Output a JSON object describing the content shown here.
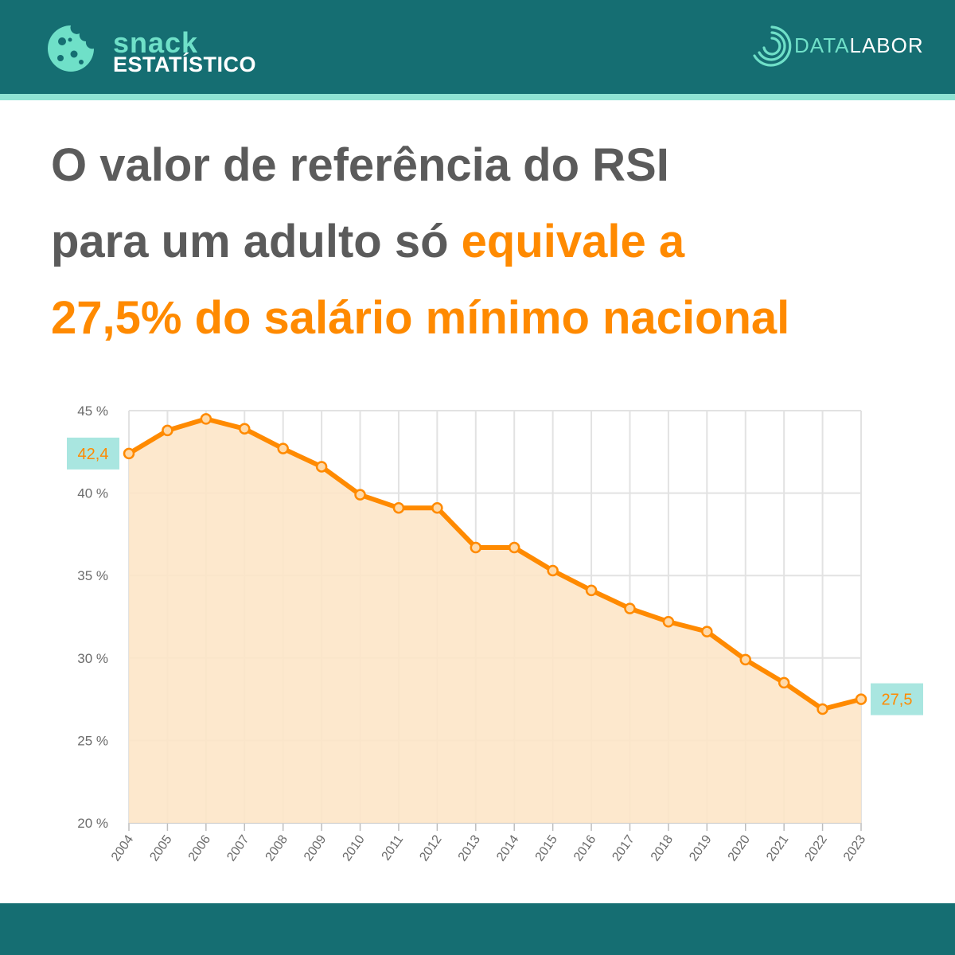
{
  "header": {
    "brand_top": "snack",
    "brand_bottom": "ESTATÍSTICO",
    "partner_part1": "DATA",
    "partner_part2": "LABOR",
    "brand_icon": "cookie-icon",
    "partner_icon": "concentric-arcs-icon"
  },
  "headline": {
    "line1": "O valor de referência do RSI",
    "line2_plain": "para um adulto só",
    "line2_highlight": "equivale a",
    "line3_highlight": "27,5% do salário mínimo nacional"
  },
  "colors": {
    "header_bg": "#156e72",
    "accent_teal": "#6fe0c8",
    "highlight_orange": "#ff8a00",
    "text_gray": "#5b5b5b",
    "area_fill": "#fde5c8",
    "callout_bg": "#a9e6e0"
  },
  "chart_data": {
    "type": "area",
    "title": "",
    "xlabel": "",
    "ylabel": "",
    "x": [
      "2004",
      "2005",
      "2006",
      "2007",
      "2008",
      "2009",
      "2010",
      "2011",
      "2012",
      "2013",
      "2014",
      "2015",
      "2016",
      "2017",
      "2018",
      "2019",
      "2020",
      "2021",
      "2022",
      "2023"
    ],
    "values": [
      42.4,
      43.8,
      44.5,
      43.9,
      42.7,
      41.6,
      39.9,
      39.1,
      39.1,
      36.7,
      36.7,
      35.3,
      34.1,
      33.0,
      32.2,
      31.6,
      29.9,
      28.5,
      26.9,
      27.5
    ],
    "ylim": [
      20,
      45
    ],
    "y_ticks": [
      "20 %",
      "25 %",
      "30 %",
      "35 %",
      "40 %",
      "45 %"
    ],
    "y_tick_values": [
      20,
      25,
      30,
      35,
      40,
      45
    ],
    "callouts": [
      {
        "index": 0,
        "text": "42,4"
      },
      {
        "index": 19,
        "text": "27,5"
      }
    ],
    "grid": true,
    "legend": "none"
  }
}
